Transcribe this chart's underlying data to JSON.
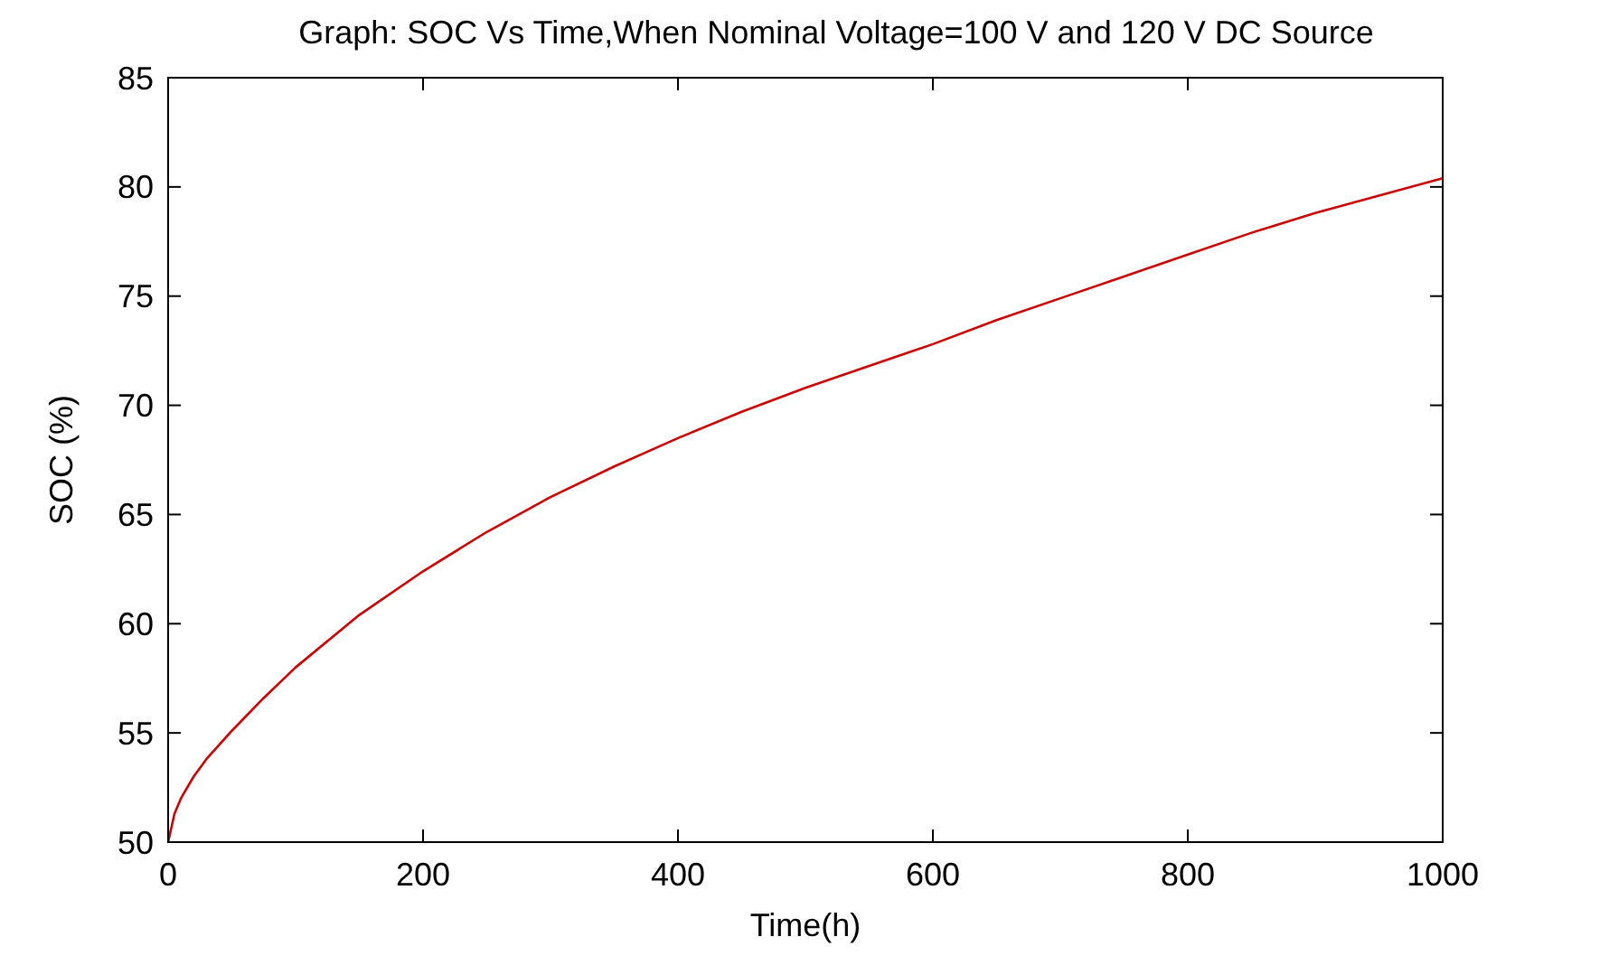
{
  "chart_data": {
    "type": "line",
    "title": "Graph: SOC Vs Time,When Nominal Voltage=100 V and 120 V DC Source",
    "xlabel": "Time(h)",
    "ylabel": "SOC (%)",
    "x": [
      0,
      5,
      10,
      20,
      30,
      50,
      75,
      100,
      150,
      200,
      250,
      300,
      350,
      400,
      450,
      500,
      550,
      600,
      650,
      700,
      750,
      800,
      850,
      900,
      950,
      1000
    ],
    "series": [
      {
        "color": "#cc0000",
        "values": [
          50,
          51.3,
          52,
          53,
          53.8,
          55.1,
          56.6,
          58,
          60.4,
          62.4,
          64.2,
          65.8,
          67.2,
          68.5,
          69.7,
          70.8,
          71.8,
          72.8,
          73.9,
          74.9,
          75.9,
          76.9,
          77.9,
          78.8,
          79.6,
          80.4
        ]
      }
    ],
    "xlim": [
      0,
      1000
    ],
    "ylim": [
      50,
      85
    ],
    "xticks": [
      0,
      200,
      400,
      600,
      800,
      1000
    ],
    "yticks": [
      50,
      55,
      60,
      65,
      70,
      75,
      80,
      85
    ],
    "grid": false,
    "marker": "none",
    "line_style": "solid"
  }
}
